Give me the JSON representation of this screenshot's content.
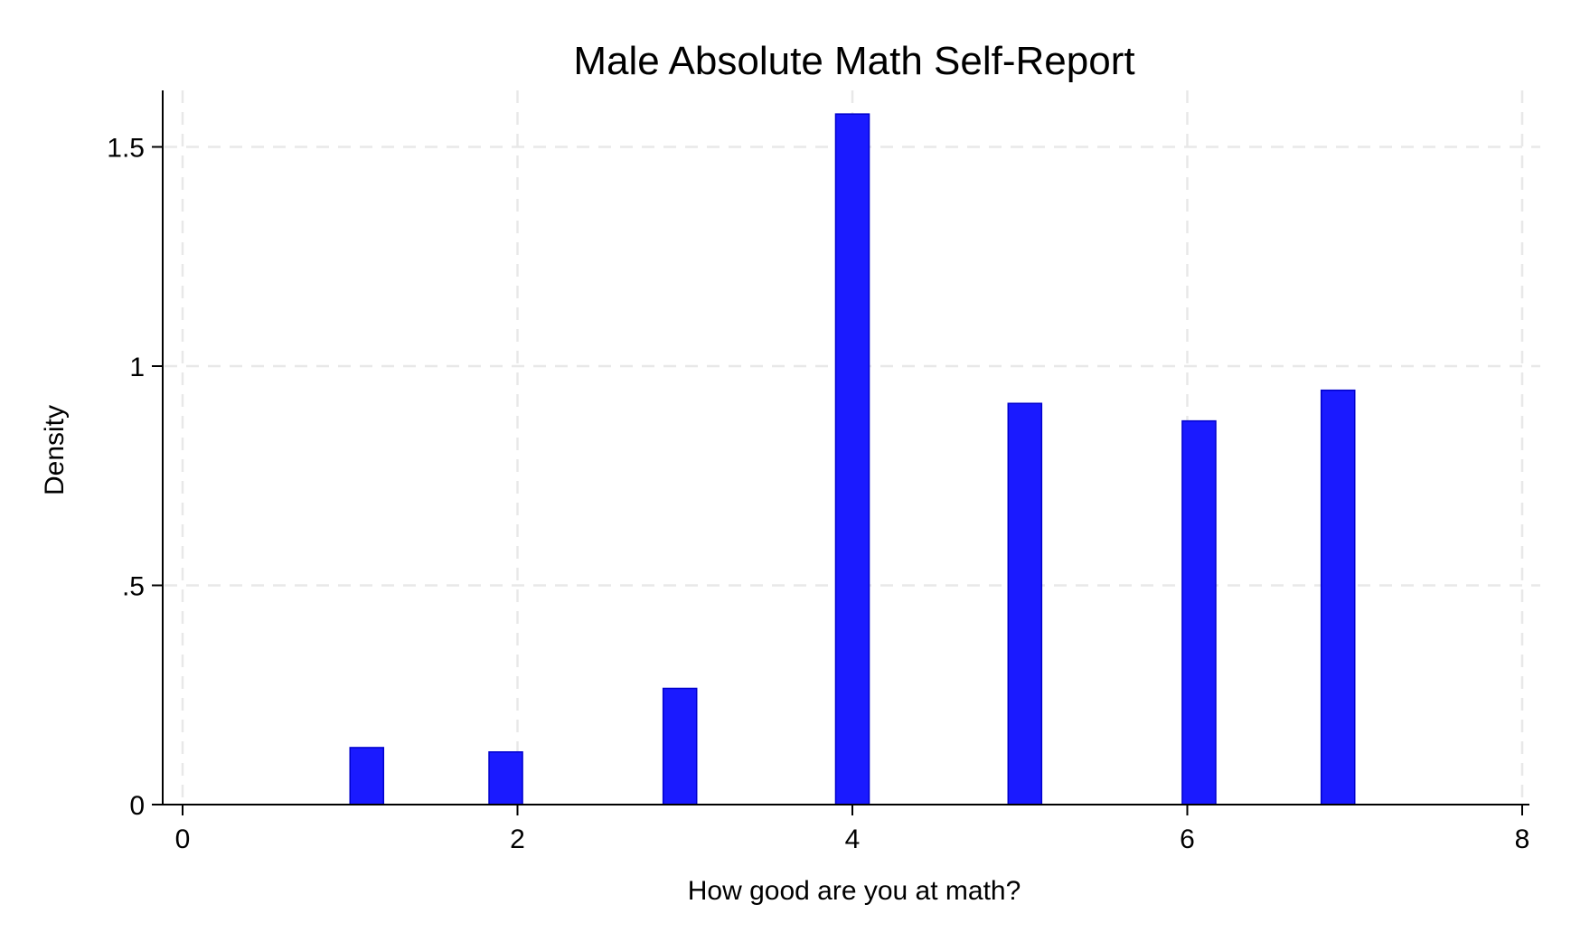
{
  "chart_data": {
    "type": "bar",
    "title": "Male Absolute Math Self-Report",
    "xlabel": "How good are you at math?",
    "ylabel": "Density",
    "xlim": [
      0,
      8
    ],
    "ylim": [
      0,
      1.6
    ],
    "x_ticks": [
      {
        "value": 0,
        "label": "0"
      },
      {
        "value": 2,
        "label": "2"
      },
      {
        "value": 4,
        "label": "4"
      },
      {
        "value": 6,
        "label": "6"
      },
      {
        "value": 8,
        "label": "8"
      }
    ],
    "y_ticks": [
      {
        "value": 0,
        "label": "0"
      },
      {
        "value": 0.5,
        "label": ".5"
      },
      {
        "value": 1,
        "label": "1"
      },
      {
        "value": 1.5,
        "label": "1.5"
      }
    ],
    "grid": true,
    "bars": [
      {
        "x_start": 1.0,
        "x_end": 1.2,
        "value": 0.13
      },
      {
        "x_start": 1.83,
        "x_end": 2.03,
        "value": 0.12
      },
      {
        "x_start": 2.87,
        "x_end": 3.07,
        "value": 0.265
      },
      {
        "x_start": 3.9,
        "x_end": 4.1,
        "value": 1.575
      },
      {
        "x_start": 4.93,
        "x_end": 5.13,
        "value": 0.915
      },
      {
        "x_start": 5.97,
        "x_end": 6.17,
        "value": 0.875
      },
      {
        "x_start": 6.8,
        "x_end": 7.0,
        "value": 0.945
      }
    ],
    "colors": {
      "bar_fill": "#1a1aff",
      "bar_stroke": "#0000cc",
      "grid": "#e8e8e8",
      "axis": "#000000"
    }
  }
}
